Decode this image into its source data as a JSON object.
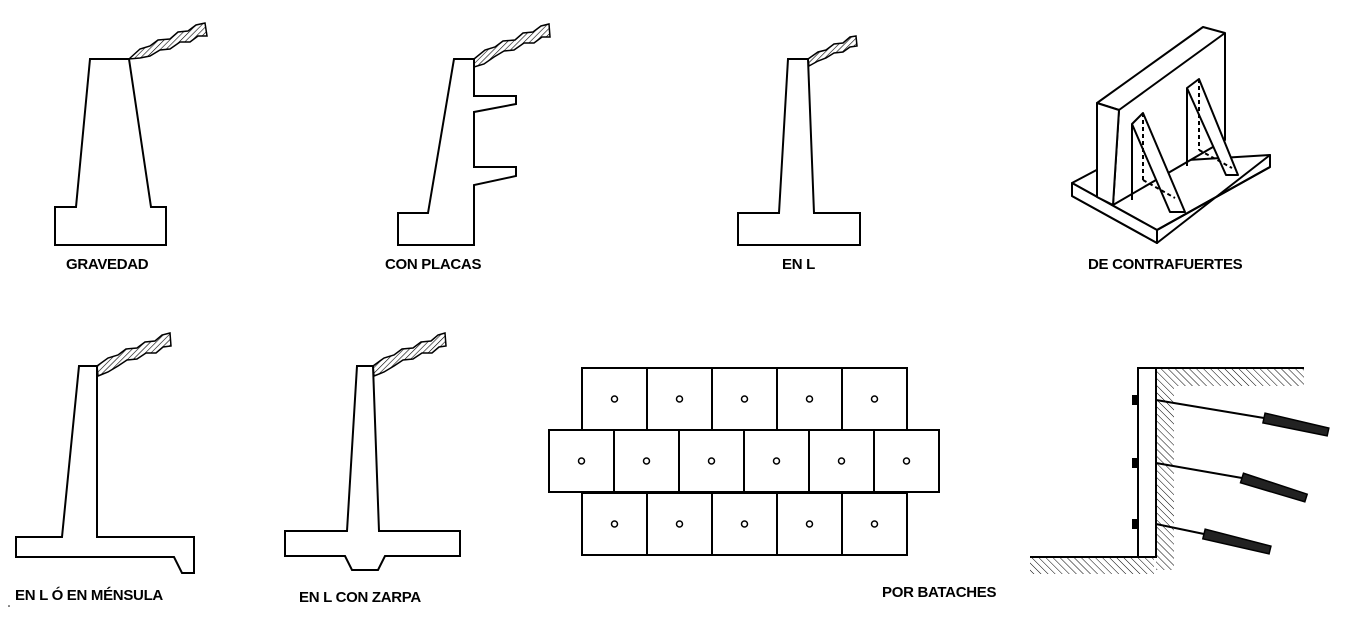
{
  "figures": [
    {
      "name": "gravity-wall",
      "label": "GRAVEDAD"
    },
    {
      "name": "plates-wall",
      "label": "CON PLACAS"
    },
    {
      "name": "l-wall",
      "label": "EN L"
    },
    {
      "name": "buttress-wall",
      "label": "DE CONTRAFUERTES"
    },
    {
      "name": "cantilever-wall",
      "label": "EN L Ó EN MÉNSULA"
    },
    {
      "name": "l-wall-with-footing-key",
      "label": "EN L CON ZARPA"
    },
    {
      "name": "anchored-panels-wall",
      "label": "POR BATACHES"
    }
  ],
  "panel_grid": {
    "rows": [
      5,
      6,
      5
    ]
  },
  "anchors": {
    "count": 3
  },
  "colors": {
    "line": "#000000",
    "fill": "#ffffff",
    "soil": "#000000"
  }
}
